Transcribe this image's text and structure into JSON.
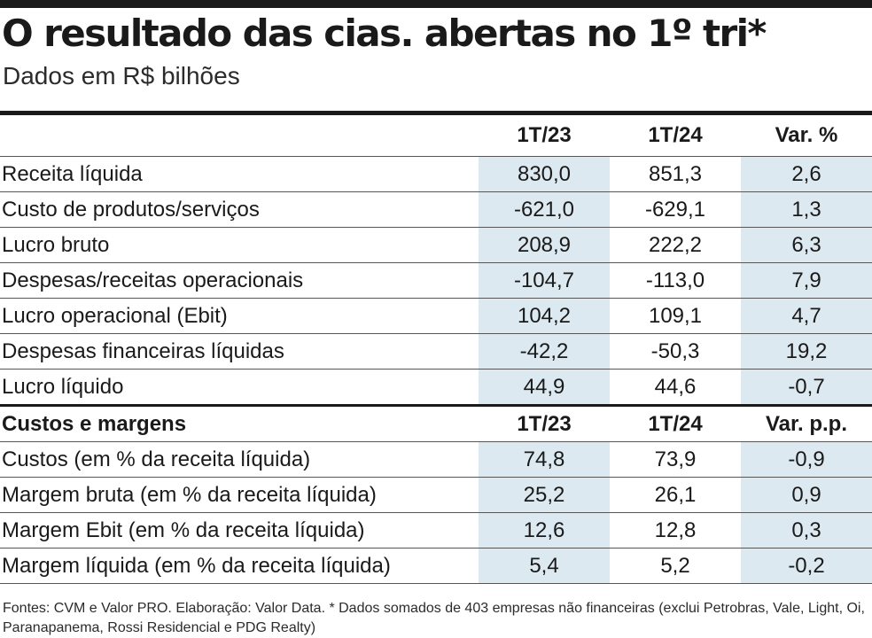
{
  "title": "O resultado das cias. abertas no 1º tri*",
  "subtitle": "Dados em R$ bilhões",
  "results": {
    "headers": [
      "",
      "1T/23",
      "1T/24",
      "Var. %"
    ],
    "rows": [
      {
        "label": "Receita líquida",
        "q23": "830,0",
        "q24": "851,3",
        "var": "2,6"
      },
      {
        "label": "Custo de produtos/serviços",
        "q23": "-621,0",
        "q24": "-629,1",
        "var": "1,3"
      },
      {
        "label": "Lucro bruto",
        "q23": "208,9",
        "q24": "222,2",
        "var": "6,3"
      },
      {
        "label": "Despesas/receitas operacionais",
        "q23": "-104,7",
        "q24": "-113,0",
        "var": "7,9"
      },
      {
        "label": "Lucro operacional (Ebit)",
        "q23": "104,2",
        "q24": "109,1",
        "var": "4,7"
      },
      {
        "label": "Despesas financeiras líquidas",
        "q23": "-42,2",
        "q24": "-50,3",
        "var": "19,2"
      },
      {
        "label": "Lucro líquido",
        "q23": "44,9",
        "q24": "44,6",
        "var": "-0,7"
      }
    ]
  },
  "margins": {
    "headers": [
      "Custos e margens",
      "1T/23",
      "1T/24",
      "Var. p.p."
    ],
    "rows": [
      {
        "label": "Custos (em % da receita líquida)",
        "q23": "74,8",
        "q24": "73,9",
        "var": "-0,9"
      },
      {
        "label": "Margem bruta (em % da receita líquida)",
        "q23": "25,2",
        "q24": "26,1",
        "var": "0,9"
      },
      {
        "label": "Margem Ebit (em % da receita líquida)",
        "q23": "12,6",
        "q24": "12,8",
        "var": "0,3"
      },
      {
        "label": "Margem líquida (em % da receita líquida)",
        "q23": "5,4",
        "q24": "5,2",
        "var": "-0,2"
      }
    ]
  },
  "footnote": "Fontes: CVM e Valor PRO. Elaboração: Valor Data. * Dados somados de 403 empresas não financeiras (exclui Petrobras, Vale, Light, Oi, Paranapanema, Rossi Residencial e PDG Realty)",
  "colors": {
    "ink": "#1a1a1a",
    "shade": "#dde9f0",
    "background": "#ffffff"
  }
}
